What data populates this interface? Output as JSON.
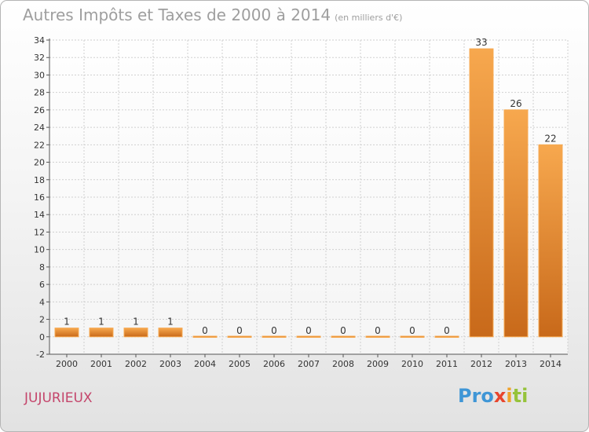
{
  "title": "Autres Impôts et Taxes de 2000 à 2014",
  "subtitle": "(en milliers d'€)",
  "commune": "JUJURIEUX",
  "logo": {
    "p1": "Pro",
    "p2": "x",
    "p3": "i",
    "p4": "ti"
  },
  "colors": {
    "bar_light": "#f7a84e",
    "bar_dark": "#c8691a",
    "grid": "#d0d0d0",
    "axis": "#555555",
    "title": "#9e9e9e",
    "commune": "#c4456b"
  },
  "chart_data": {
    "type": "bar",
    "categories": [
      "2000",
      "2001",
      "2002",
      "2003",
      "2004",
      "2005",
      "2006",
      "2007",
      "2008",
      "2009",
      "2010",
      "2011",
      "2012",
      "2013",
      "2014"
    ],
    "values": [
      1,
      1,
      1,
      1,
      0,
      0,
      0,
      0,
      0,
      0,
      0,
      0,
      33,
      26,
      22
    ],
    "data_labels": [
      "1",
      "1",
      "1",
      "1",
      "0",
      "0",
      "0",
      "0",
      "0",
      "0",
      "0",
      "0",
      "33",
      "26",
      "22"
    ],
    "ylim": [
      -2,
      34
    ],
    "yticks": [
      -2,
      0,
      2,
      4,
      6,
      8,
      10,
      12,
      14,
      16,
      18,
      20,
      22,
      24,
      26,
      28,
      30,
      32,
      34
    ],
    "grid": true,
    "legend": "none"
  }
}
